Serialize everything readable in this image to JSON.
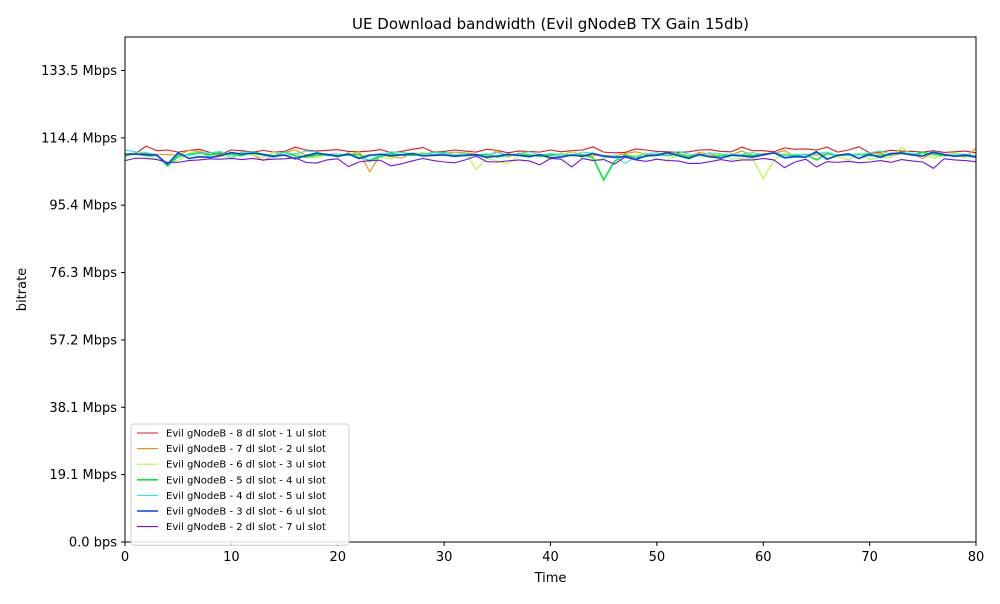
{
  "chart_data": {
    "type": "line",
    "title": "UE Download bandwidth (Evil gNodeB TX Gain 15db)",
    "xlabel": "Time",
    "ylabel": "bitrate",
    "xlim": [
      0,
      80
    ],
    "ylim": [
      0,
      143
    ],
    "x_ticks": [
      0,
      10,
      20,
      30,
      40,
      50,
      60,
      70,
      80
    ],
    "y_ticks": [
      {
        "value": 0,
        "label": "0.0 bps"
      },
      {
        "value": 19.07,
        "label": "19.1 Mbps"
      },
      {
        "value": 38.15,
        "label": "38.1 Mbps"
      },
      {
        "value": 57.22,
        "label": "57.2 Mbps"
      },
      {
        "value": 76.29,
        "label": "76.3 Mbps"
      },
      {
        "value": 95.37,
        "label": "95.4 Mbps"
      },
      {
        "value": 114.44,
        "label": "114.4 Mbps"
      },
      {
        "value": 133.51,
        "label": "133.5 Mbps"
      }
    ],
    "grid": false,
    "legend_position": "lower-left",
    "x": [
      0,
      1,
      2,
      3,
      4,
      5,
      6,
      7,
      8,
      9,
      10,
      11,
      12,
      13,
      14,
      15,
      16,
      17,
      18,
      19,
      20,
      21,
      22,
      23,
      24,
      25,
      26,
      27,
      28,
      29,
      30,
      31,
      32,
      33,
      34,
      35,
      36,
      37,
      38,
      39,
      40,
      41,
      42,
      43,
      44,
      45,
      46,
      47,
      48,
      49,
      50,
      51,
      52,
      53,
      54,
      55,
      56,
      57,
      58,
      59,
      60,
      61,
      62,
      63,
      64,
      65,
      66,
      67,
      68,
      69,
      70,
      71,
      72,
      73,
      74,
      75,
      76,
      77,
      78,
      79,
      80
    ],
    "series": [
      {
        "name": "Evil gNodeB - 8 dl slot - 1 ul slot",
        "color": "#e8141e",
        "values": [
          109.8,
          110.1,
          112.1,
          110.8,
          111.0,
          110.4,
          110.9,
          111.2,
          110.3,
          109.8,
          111.0,
          110.8,
          110.4,
          110.9,
          110.4,
          110.6,
          111.8,
          111.0,
          110.7,
          110.9,
          111.1,
          110.6,
          110.5,
          110.7,
          111.1,
          110.3,
          110.6,
          111.2,
          111.7,
          110.4,
          110.6,
          111.0,
          110.7,
          110.4,
          111.2,
          110.9,
          110.2,
          110.7,
          110.6,
          110.4,
          111.0,
          110.5,
          110.8,
          111.0,
          111.9,
          110.4,
          110.2,
          110.3,
          111.3,
          111.0,
          110.6,
          110.5,
          110.3,
          110.5,
          111.0,
          111.1,
          110.6,
          110.5,
          111.8,
          110.8,
          110.8,
          110.5,
          111.6,
          111.2,
          111.3,
          111.0,
          111.8,
          110.4,
          111.0,
          111.9,
          110.2,
          110.4,
          110.9,
          110.7,
          110.6,
          110.4,
          110.8,
          110.3,
          110.5,
          110.7,
          110.2
        ]
      },
      {
        "name": "Evil gNodeB - 7 dl slot - 2 ul slot",
        "color": "#ff8c00",
        "values": [
          109.2,
          109.9,
          110.1,
          109.8,
          109.7,
          109.5,
          110.9,
          110.6,
          109.8,
          109.5,
          109.9,
          110.2,
          109.6,
          108.0,
          109.4,
          110.3,
          111.0,
          109.6,
          109.5,
          109.8,
          109.9,
          109.4,
          110.6,
          104.8,
          109.6,
          109.1,
          108.7,
          110.1,
          110.0,
          109.6,
          110.0,
          110.4,
          110.2,
          109.8,
          109.1,
          110.8,
          109.0,
          110.2,
          109.6,
          109.4,
          109.8,
          109.5,
          110.4,
          109.7,
          109.4,
          109.5,
          109.3,
          110.0,
          110.5,
          109.8,
          109.6,
          109.9,
          110.0,
          109.2,
          110.3,
          109.8,
          109.4,
          109.6,
          110.7,
          109.5,
          110.0,
          110.1,
          110.8,
          109.2,
          109.8,
          109.5,
          110.0,
          109.3,
          109.7,
          109.6,
          110.0,
          110.1,
          109.4,
          110.0,
          109.8,
          108.6,
          110.2,
          109.5,
          109.3,
          109.0,
          111.5
        ]
      },
      {
        "name": "Evil gNodeB - 6 dl slot - 3 ul slot",
        "color": "#adff2f",
        "values": [
          109.0,
          109.9,
          109.6,
          108.4,
          107.2,
          108.0,
          110.0,
          110.3,
          109.0,
          109.4,
          108.5,
          110.1,
          109.6,
          108.9,
          110.4,
          109.3,
          110.1,
          109.0,
          108.9,
          109.6,
          109.0,
          110.3,
          109.2,
          109.8,
          109.0,
          108.5,
          109.9,
          109.8,
          110.3,
          109.3,
          109.8,
          109.2,
          110.4,
          105.5,
          108.6,
          107.9,
          107.0,
          109.4,
          109.0,
          109.7,
          108.2,
          109.6,
          110.6,
          108.7,
          108.2,
          108.5,
          109.3,
          108.7,
          109.4,
          110.1,
          108.4,
          108.1,
          109.6,
          109.0,
          109.5,
          108.8,
          110.0,
          108.4,
          108.7,
          108.6,
          102.8,
          108.1,
          110.0,
          109.3,
          108.9,
          110.7,
          108.6,
          109.1,
          108.2,
          110.0,
          108.3,
          109.0,
          108.8,
          111.8,
          109.6,
          110.2,
          108.6,
          109.6,
          110.1,
          109.7,
          109.5
        ]
      },
      {
        "name": "Evil gNodeB - 5 dl slot - 4 ul slot",
        "color": "#00ee30",
        "values": [
          109.5,
          110.0,
          109.4,
          109.5,
          106.5,
          109.2,
          109.8,
          110.2,
          109.6,
          110.3,
          109.7,
          109.4,
          110.5,
          109.8,
          109.3,
          110.4,
          109.3,
          109.0,
          109.5,
          109.8,
          109.4,
          109.6,
          109.8,
          107.8,
          109.2,
          110.0,
          109.6,
          109.5,
          109.8,
          110.2,
          110.3,
          109.5,
          109.4,
          109.6,
          109.8,
          109.0,
          109.5,
          109.6,
          109.6,
          109.2,
          109.5,
          109.8,
          109.4,
          109.6,
          108.8,
          102.5,
          107.8,
          109.6,
          108.9,
          109.2,
          109.7,
          109.4,
          109.9,
          109.1,
          109.5,
          109.2,
          109.3,
          109.8,
          109.6,
          109.4,
          109.8,
          110.2,
          109.5,
          109.4,
          109.8,
          108.2,
          110.0,
          109.5,
          109.6,
          109.8,
          109.4,
          109.5,
          109.7,
          110.4,
          109.6,
          110.3,
          109.8,
          109.4,
          109.6,
          109.3,
          109.0
        ]
      },
      {
        "name": "Evil gNodeB - 4 dl slot - 5 ul slot",
        "color": "#2ee6e6",
        "values": [
          111.0,
          110.5,
          110.3,
          109.5,
          106.8,
          109.8,
          109.5,
          110.0,
          110.2,
          110.6,
          108.7,
          110.5,
          110.2,
          109.5,
          108.9,
          110.4,
          109.8,
          110.7,
          110.5,
          109.3,
          109.9,
          109.6,
          108.9,
          108.2,
          109.7,
          110.5,
          110.3,
          109.9,
          109.8,
          110.2,
          110.1,
          109.7,
          110.0,
          109.4,
          109.5,
          110.3,
          109.6,
          110.0,
          110.5,
          109.6,
          110.0,
          109.7,
          109.5,
          110.4,
          110.1,
          108.9,
          109.5,
          107.2,
          109.0,
          110.0,
          110.2,
          109.4,
          110.6,
          109.8,
          109.5,
          110.2,
          109.9,
          109.6,
          109.8,
          110.3,
          109.7,
          110.2,
          109.4,
          109.8,
          109.6,
          110.0,
          110.4,
          109.5,
          109.9,
          109.6,
          110.2,
          110.7,
          109.8,
          110.0,
          110.1,
          109.4,
          110.6,
          109.8,
          109.6,
          109.8,
          109.4
        ]
      },
      {
        "name": "Evil gNodeB - 3 dl slot - 6 ul slot",
        "color": "#0044ee",
        "values": [
          109.8,
          109.8,
          109.7,
          109.5,
          107.0,
          110.2,
          108.6,
          109.1,
          108.9,
          109.4,
          110.3,
          109.8,
          110.1,
          109.7,
          109.2,
          109.6,
          108.5,
          109.4,
          110.1,
          109.7,
          109.2,
          109.9,
          108.6,
          109.5,
          109.8,
          109.4,
          109.6,
          110.0,
          109.3,
          109.5,
          109.6,
          109.2,
          109.5,
          109.7,
          108.9,
          109.3,
          109.8,
          109.5,
          109.1,
          109.7,
          108.8,
          109.0,
          109.6,
          109.2,
          110.0,
          109.3,
          108.9,
          109.2,
          108.3,
          109.4,
          109.5,
          110.3,
          109.4,
          108.6,
          109.8,
          109.1,
          108.7,
          109.5,
          109.3,
          109.0,
          109.6,
          110.2,
          108.8,
          109.1,
          109.0,
          110.5,
          108.4,
          109.5,
          109.9,
          108.6,
          109.8,
          108.9,
          110.0,
          110.1,
          109.6,
          109.3,
          110.4,
          109.7,
          109.2,
          109.6,
          109.0
        ]
      },
      {
        "name": "Evil gNodeB - 2 dl slot - 7 ul slot",
        "color": "#7b0ee8",
        "values": [
          108.0,
          108.7,
          108.6,
          108.3,
          107.5,
          107.5,
          108.0,
          108.2,
          108.5,
          108.4,
          108.6,
          108.3,
          108.6,
          108.2,
          108.4,
          108.5,
          108.8,
          107.5,
          107.3,
          108.2,
          108.5,
          106.3,
          107.6,
          108.0,
          108.1,
          106.5,
          107.1,
          107.9,
          108.6,
          108.0,
          107.6,
          107.4,
          108.2,
          109.3,
          107.7,
          107.6,
          107.9,
          108.2,
          107.9,
          106.8,
          108.6,
          108.4,
          106.2,
          108.6,
          108.0,
          108.3,
          107.0,
          109.0,
          108.2,
          107.8,
          108.4,
          108.0,
          107.9,
          107.2,
          107.2,
          107.7,
          108.3,
          107.8,
          108.2,
          108.2,
          108.6,
          108.2,
          106.0,
          107.6,
          108.4,
          106.2,
          107.7,
          107.5,
          107.8,
          107.4,
          107.6,
          108.0,
          107.5,
          108.3,
          107.9,
          107.6,
          105.8,
          108.5,
          108.2,
          108.0,
          107.7
        ]
      }
    ]
  }
}
